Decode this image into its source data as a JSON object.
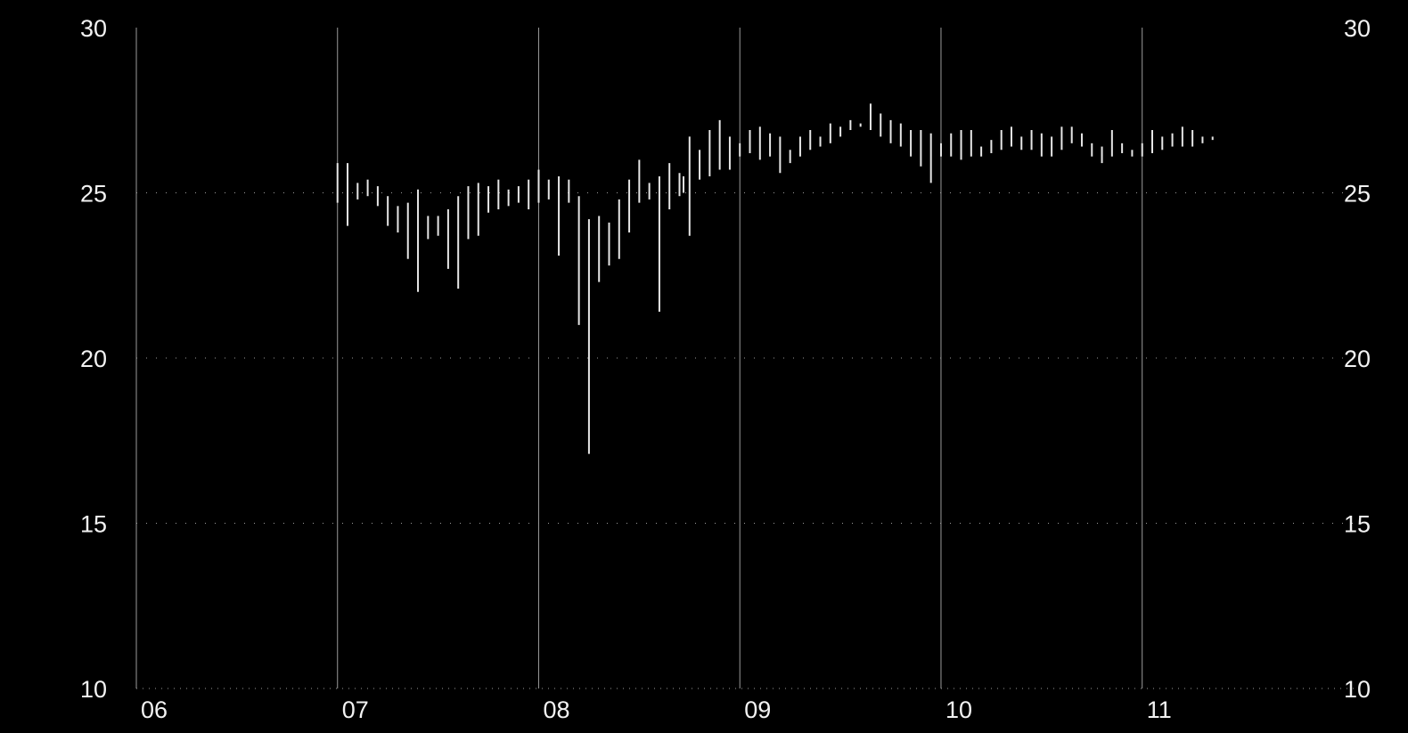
{
  "chart_data": {
    "type": "bar",
    "subtype": "ohlc-range",
    "title": "",
    "xlabel": "",
    "ylabel": "",
    "ylim": [
      10,
      30
    ],
    "y_ticks": [
      30,
      25,
      20,
      15,
      10
    ],
    "y_tick_labels_left": [
      "30",
      "25",
      "20",
      "15",
      "10"
    ],
    "y_tick_labels_right": [
      "30",
      "25",
      "20",
      "15",
      "10"
    ],
    "x_ticks": [
      "06",
      "07",
      "08",
      "09",
      "10",
      "11"
    ],
    "x_tick_values": [
      2006,
      2007,
      2008,
      2009,
      2010,
      2011
    ],
    "xlim": [
      2006.0,
      2011.4
    ],
    "grid": "dotted horizontal at 25/20/15, solid vertical at year boundaries",
    "colors": {
      "background": "#000000",
      "bars": "#e6e6e6",
      "grid": "#9a9a9a",
      "text": "#f2f2f2"
    },
    "series": [
      {
        "x": [
          2007.0,
          2007.05,
          2007.1,
          2007.15,
          2007.2,
          2007.25,
          2007.3,
          2007.35,
          2007.4,
          2007.45,
          2007.5,
          2007.55,
          2007.6,
          2007.65,
          2007.7,
          2007.75,
          2007.8,
          2007.85,
          2007.9,
          2007.95,
          2008.0,
          2008.05,
          2008.1,
          2008.15,
          2008.2,
          2008.25,
          2008.3,
          2008.35,
          2008.4,
          2008.45,
          2008.5,
          2008.55,
          2008.6,
          2008.65,
          2008.7,
          2008.72,
          2008.75,
          2008.8,
          2008.85,
          2008.9,
          2008.95,
          2009.0,
          2009.05,
          2009.1,
          2009.15,
          2009.2,
          2009.25,
          2009.3,
          2009.35,
          2009.4,
          2009.45,
          2009.5,
          2009.55,
          2009.6,
          2009.65,
          2009.7,
          2009.75,
          2009.8,
          2009.85,
          2009.9,
          2009.95,
          2010.0,
          2010.05,
          2010.1,
          2010.15,
          2010.2,
          2010.25,
          2010.3,
          2010.35,
          2010.4,
          2010.45,
          2010.5,
          2010.55,
          2010.6,
          2010.65,
          2010.7,
          2010.75,
          2010.8,
          2010.85,
          2010.9,
          2010.95,
          2011.0,
          2011.05,
          2011.1,
          2011.15,
          2011.2,
          2011.25,
          2011.3,
          2011.35
        ],
        "high": [
          25.9,
          25.9,
          25.3,
          25.4,
          25.2,
          24.9,
          24.6,
          24.7,
          25.1,
          24.3,
          24.3,
          24.5,
          24.9,
          25.2,
          25.3,
          25.2,
          25.4,
          25.1,
          25.2,
          25.4,
          25.7,
          25.4,
          25.5,
          25.4,
          24.9,
          24.2,
          24.3,
          24.1,
          24.8,
          25.4,
          26.0,
          25.3,
          25.5,
          25.9,
          25.6,
          25.5,
          26.7,
          26.3,
          26.9,
          27.2,
          26.7,
          26.5,
          26.9,
          27.0,
          26.8,
          26.7,
          26.3,
          26.7,
          26.9,
          26.7,
          27.1,
          27.0,
          27.2,
          27.1,
          27.7,
          27.4,
          27.2,
          27.1,
          26.9,
          26.9,
          26.8,
          26.5,
          26.8,
          26.9,
          26.9,
          26.4,
          26.6,
          26.9,
          27.0,
          26.7,
          26.9,
          26.8,
          26.7,
          27.0,
          27.0,
          26.8,
          26.5,
          26.4,
          26.9,
          26.5,
          26.3,
          26.5,
          26.9,
          26.7,
          26.8,
          27.0,
          26.9,
          26.7,
          26.7
        ],
        "low": [
          24.7,
          24.0,
          24.8,
          24.9,
          24.6,
          24.0,
          23.8,
          23.0,
          22.0,
          23.6,
          23.7,
          22.7,
          22.1,
          23.6,
          23.7,
          24.4,
          24.5,
          24.6,
          24.7,
          24.5,
          24.7,
          24.8,
          23.1,
          24.7,
          21.0,
          17.1,
          22.3,
          22.8,
          23.0,
          23.8,
          24.7,
          24.8,
          21.4,
          24.5,
          24.9,
          25.0,
          23.7,
          25.4,
          25.5,
          25.7,
          25.7,
          26.1,
          26.2,
          26.0,
          26.1,
          25.6,
          25.9,
          26.1,
          26.3,
          26.4,
          26.5,
          26.7,
          26.9,
          27.0,
          26.9,
          26.7,
          26.5,
          26.4,
          26.1,
          25.8,
          25.3,
          26.1,
          26.1,
          26.0,
          26.1,
          26.1,
          26.2,
          26.3,
          26.4,
          26.3,
          26.3,
          26.1,
          26.1,
          26.3,
          26.5,
          26.4,
          26.1,
          25.9,
          26.1,
          26.2,
          26.1,
          26.1,
          26.2,
          26.3,
          26.4,
          26.4,
          26.4,
          26.5,
          26.6
        ]
      }
    ]
  }
}
